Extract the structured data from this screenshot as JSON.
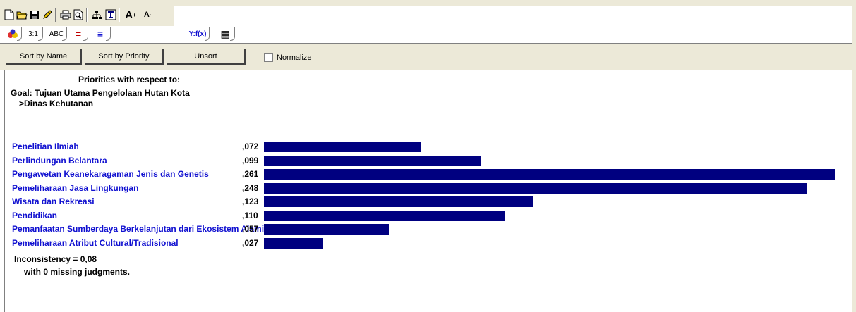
{
  "toolbar": {
    "buttons": [
      "new-file-icon",
      "open-folder-icon",
      "save-icon",
      "edit-icon",
      "print-icon",
      "print-preview-icon",
      "hierarchy-icon",
      "tree-icon",
      "font-increase-icon",
      "font-decrease-icon"
    ]
  },
  "tabs": [
    {
      "label": "",
      "icon": "colored-drops-icon"
    },
    {
      "label": "3:1"
    },
    {
      "label": "ABC"
    },
    {
      "label": "="
    },
    {
      "label": "≡"
    },
    {
      "label": "Y:f(x)"
    },
    {
      "label": "▦"
    }
  ],
  "sortbar": {
    "sort_by_name": "Sort by Name",
    "sort_by_priority": "Sort by Priority",
    "unsort": "Unsort",
    "normalize": "Normalize"
  },
  "header": {
    "title": "Priorities with respect to:",
    "goal": "Goal: Tujuan Utama Pengelolaan Hutan Kota",
    "sub": ">Dinas Kehutanan"
  },
  "priorities": [
    {
      "label": "Penelitian Ilmiah",
      "value_text": ",072",
      "value": 0.072
    },
    {
      "label": "Perlindungan Belantara",
      "value_text": ",099",
      "value": 0.099
    },
    {
      "label": "Pengawetan Keanekaragaman Jenis dan Genetis",
      "value_text": ",261",
      "value": 0.261
    },
    {
      "label": "Pemeliharaan Jasa Lingkungan",
      "value_text": ",248",
      "value": 0.248
    },
    {
      "label": "Wisata dan Rekreasi",
      "value_text": ",123",
      "value": 0.123
    },
    {
      "label": "Pendidikan",
      "value_text": ",110",
      "value": 0.11
    },
    {
      "label": "Pemanfaatan Sumberdaya Berkelanjutan dari Ekosistem Alami",
      "value_text": ",057",
      "value": 0.057
    },
    {
      "label": "Pemeliharaan Atribut Cultural/Tradisional",
      "value_text": ",027",
      "value": 0.027
    }
  ],
  "bar_color": "#000080",
  "label_color": "#1010d0",
  "inconsistency": "Inconsistency = 0,08",
  "missing": "with 0  missing judgments."
}
